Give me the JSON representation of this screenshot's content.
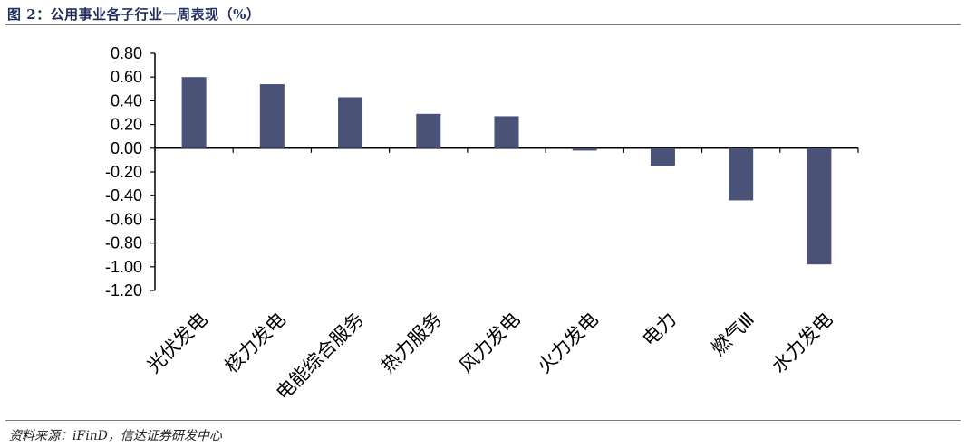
{
  "figure": {
    "title": "图 2：公用事业各子行业一周表现（%）",
    "source": "资料来源：iFinD，信达证券研发中心"
  },
  "chart_data": {
    "type": "bar",
    "title": "",
    "xlabel": "",
    "ylabel": "",
    "ylim": [
      -1.2,
      0.8
    ],
    "yticks": [
      "0.80",
      "0.60",
      "0.40",
      "0.20",
      "0.00",
      "-0.20",
      "-0.40",
      "-0.60",
      "-0.80",
      "-1.00",
      "-1.20"
    ],
    "categories": [
      "光伏发电",
      "核力发电",
      "电能综合服务",
      "热力服务",
      "风力发电",
      "火力发电",
      "电力",
      "燃气Ⅲ",
      "水力发电"
    ],
    "values": [
      0.6,
      0.54,
      0.43,
      0.29,
      0.27,
      -0.02,
      -0.15,
      -0.44,
      -0.98
    ],
    "bar_color": "#4a5277",
    "grid": false,
    "legend": "none"
  }
}
